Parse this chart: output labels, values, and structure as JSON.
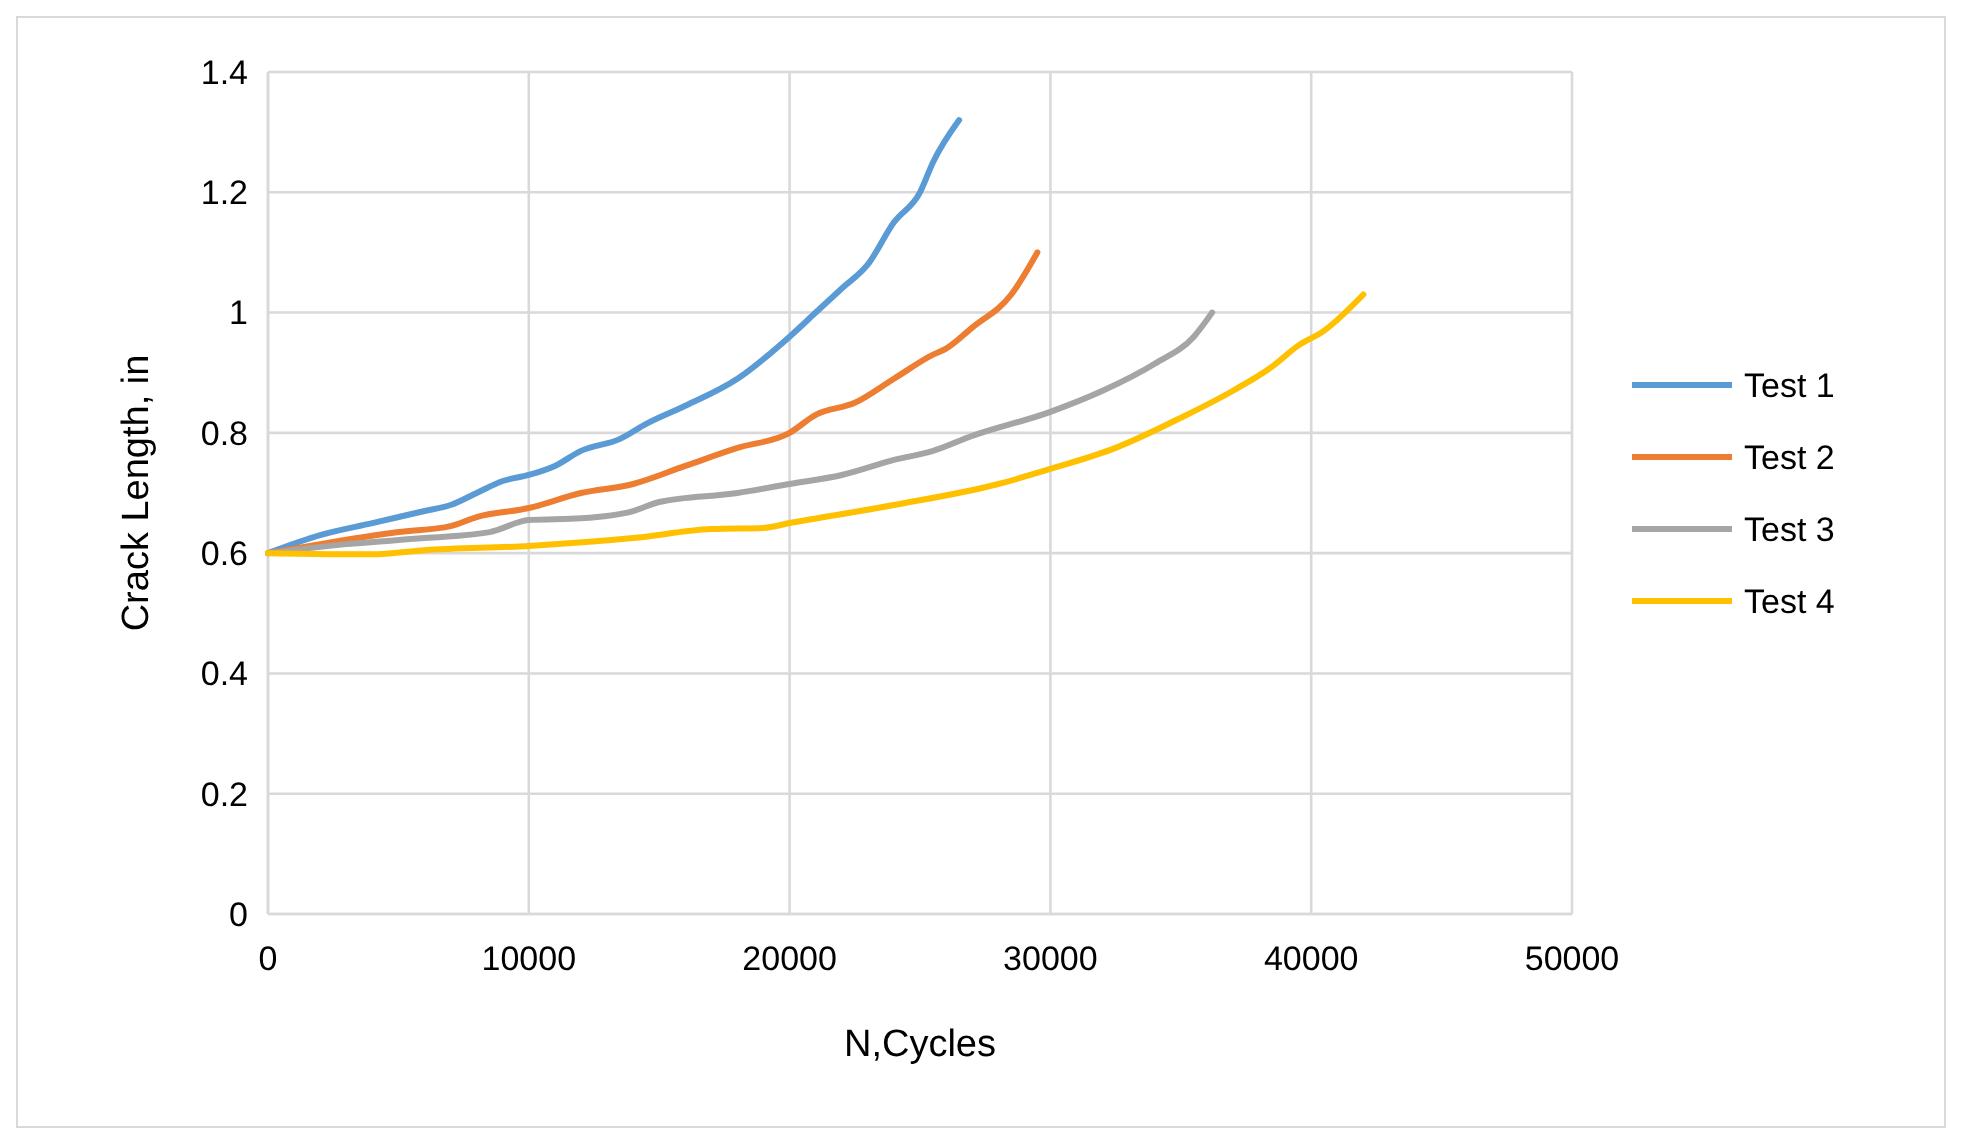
{
  "chart_data": {
    "type": "line",
    "xlabel": "N,Cycles",
    "ylabel": "Crack Length, in",
    "xlim": [
      0,
      50000
    ],
    "xticks": [
      0,
      10000,
      20000,
      30000,
      40000,
      50000
    ],
    "ylim": [
      0,
      1.4
    ],
    "yticks": [
      0,
      {
        "value": 0.2,
        "label": "0.2"
      },
      {
        "value": 0.4,
        "label": "0.4"
      },
      {
        "value": 0.6,
        "label": "0.6"
      },
      {
        "value": 0.8,
        "label": "0.8"
      },
      1,
      {
        "value": 1.2,
        "label": "1.2"
      },
      {
        "value": 1.4,
        "label": "1.4"
      }
    ],
    "grid": true,
    "legend": "right",
    "marker": "none",
    "line_style": "solid",
    "series": [
      {
        "name": "Test 1",
        "color": "#5b9bd5",
        "x": [
          0,
          2000,
          4000,
          6000,
          7000,
          8000,
          9000,
          10000,
          11000,
          12000,
          13500,
          14500,
          16000,
          18000,
          20000,
          21000,
          22000,
          23000,
          24000,
          25000,
          25500,
          26500
        ],
        "values": [
          0.6,
          0.63,
          0.65,
          0.67,
          0.68,
          0.7,
          0.72,
          0.73,
          0.745,
          0.77,
          0.79,
          0.815,
          0.845,
          0.89,
          0.96,
          1.0,
          1.04,
          1.08,
          1.15,
          1.2,
          1.25,
          1.32
        ]
      },
      {
        "name": "Test 2",
        "color": "#ed7d31",
        "x": [
          0,
          2000,
          5000,
          7000,
          8000,
          10000,
          12000,
          14000,
          16000,
          18000,
          20000,
          21000,
          22500,
          24000,
          25500,
          26000,
          27000,
          28500,
          29500
        ],
        "values": [
          0.6,
          0.615,
          0.635,
          0.645,
          0.66,
          0.675,
          0.7,
          0.715,
          0.745,
          0.775,
          0.8,
          0.83,
          0.85,
          0.89,
          0.93,
          0.94,
          0.975,
          1.03,
          1.1
        ]
      },
      {
        "name": "Test 3",
        "color": "#a5a5a5",
        "x": [
          0,
          3000,
          6000,
          8500,
          10000,
          12000,
          14000,
          15000,
          18000,
          20000,
          22000,
          24000,
          25500,
          27000,
          30000,
          32000,
          34000,
          35500,
          36200
        ],
        "values": [
          0.6,
          0.615,
          0.625,
          0.635,
          0.655,
          0.658,
          0.67,
          0.685,
          0.7,
          0.715,
          0.73,
          0.755,
          0.77,
          0.795,
          0.835,
          0.87,
          0.915,
          0.96,
          1.0
        ]
      },
      {
        "name": "Test 4",
        "color": "#ffc000",
        "x": [
          0,
          4000,
          6000,
          10000,
          14000,
          17000,
          19000,
          20000,
          24000,
          28000,
          30000,
          32500,
          35000,
          37000,
          38500,
          39500,
          40500,
          42000
        ],
        "values": [
          0.6,
          0.598,
          0.605,
          0.612,
          0.625,
          0.64,
          0.642,
          0.65,
          0.68,
          0.715,
          0.74,
          0.775,
          0.825,
          0.87,
          0.91,
          0.945,
          0.97,
          1.03
        ]
      }
    ]
  }
}
